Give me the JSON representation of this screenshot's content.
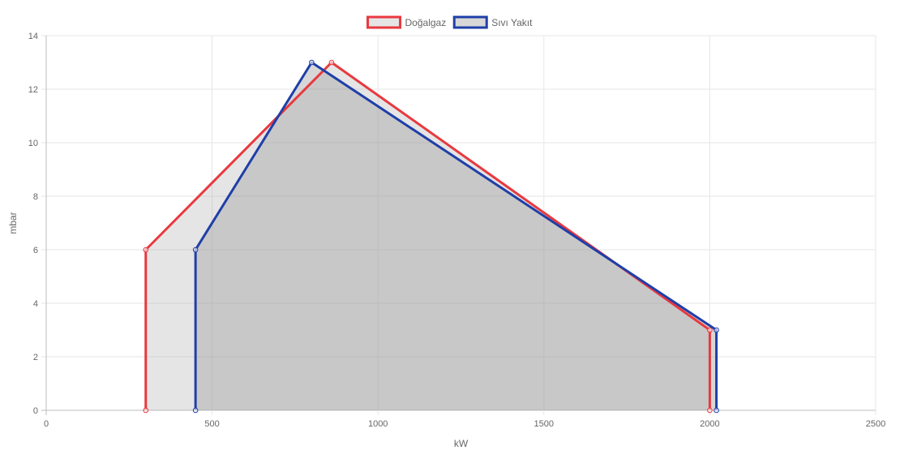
{
  "chart_data": {
    "type": "area",
    "title": "",
    "xlabel": "kW",
    "ylabel": "mbar",
    "xlim": [
      0,
      2500
    ],
    "ylim": [
      0,
      14
    ],
    "x_ticks": [
      0,
      500,
      1000,
      1500,
      2000,
      2500
    ],
    "y_ticks": [
      0,
      2,
      4,
      6,
      8,
      10,
      12,
      14
    ],
    "grid": true,
    "legend": "top-center",
    "series": [
      {
        "name": "Doğalgaz",
        "color": "#e8393f",
        "fill": "rgba(160,160,160,0.28)",
        "points": [
          [
            300,
            0
          ],
          [
            300,
            6
          ],
          [
            860,
            13
          ],
          [
            2000,
            3
          ],
          [
            2000,
            0
          ]
        ]
      },
      {
        "name": "Sıvı Yakıt",
        "color": "#1f3fa8",
        "fill": "rgba(160,160,160,0.42)",
        "points": [
          [
            450,
            0
          ],
          [
            450,
            6
          ],
          [
            800,
            13
          ],
          [
            2020,
            3
          ],
          [
            2020,
            0
          ]
        ]
      }
    ]
  }
}
